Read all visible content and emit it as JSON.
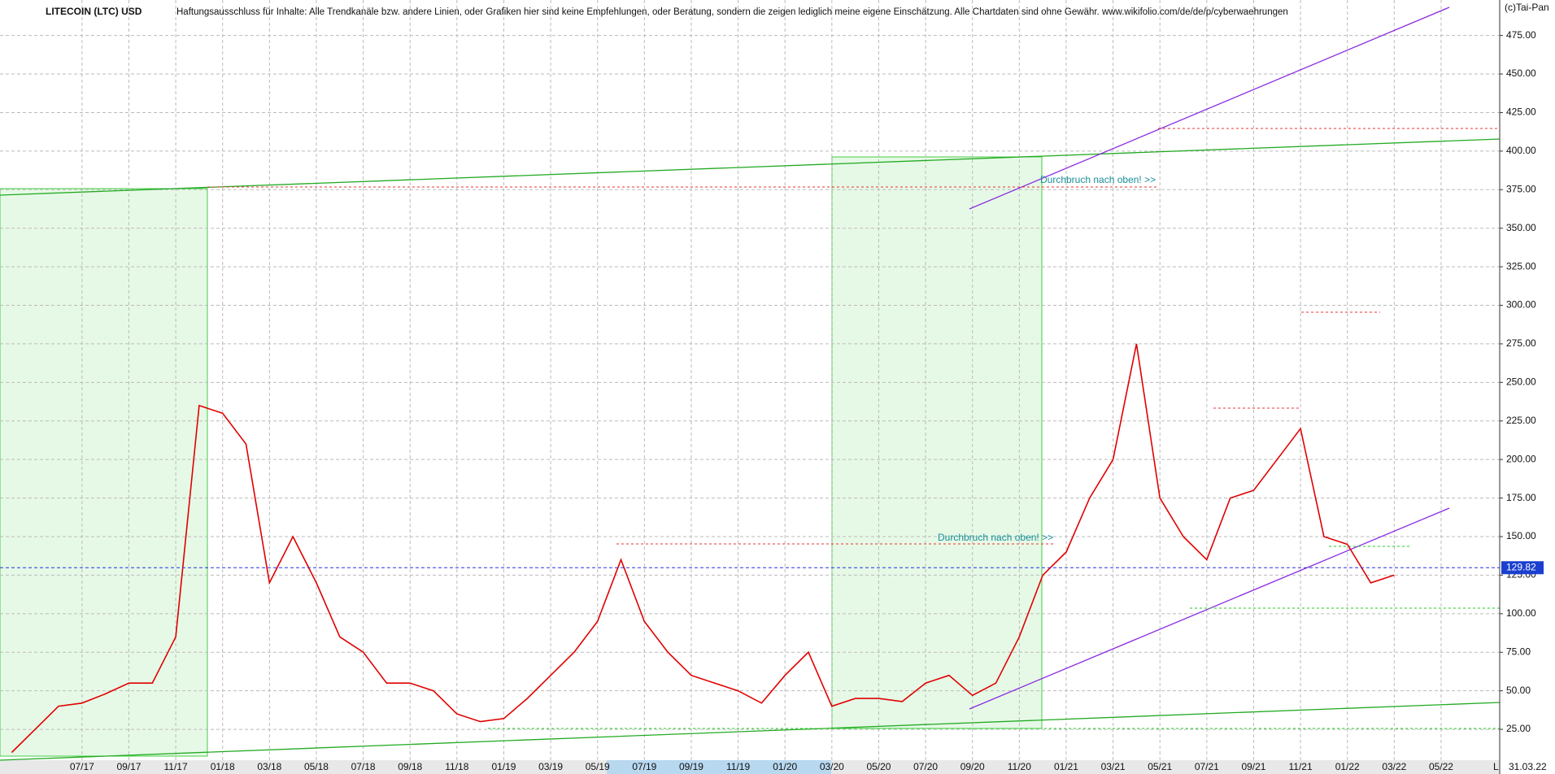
{
  "chart_data": {
    "type": "line",
    "title": "LITECOIN (LTC) USD",
    "disclaimer": "Haftungsausschluss für Inhalte: Alle Trendkanäle bzw. andere Linien, oder Grafiken hier sind keine Empfehlungen, oder Beratung, sondern die zeigen lediglich meine eigene Einschätzung. Alle Chartdaten sind ohne Gewähr.  www.wikifolio.com/de/de/p/cyberwaehrungen",
    "copyright": "(c)Tai-Pan",
    "annotations": [
      "Durchbruch nach oben! >>",
      "Durchbruch nach oben! >>"
    ],
    "date_label": "31.03.22",
    "x_axis_marker": "L",
    "last_value": 129.82,
    "categories": [
      null,
      null,
      null,
      "07/17",
      null,
      "09/17",
      null,
      "11/17",
      null,
      "01/18",
      null,
      "03/18",
      null,
      "05/18",
      null,
      "07/18",
      null,
      "09/18",
      null,
      "11/18",
      null,
      "01/19",
      null,
      "03/19",
      null,
      "05/19",
      null,
      "07/19",
      null,
      "09/19",
      null,
      "11/19",
      null,
      "01/20",
      null,
      "03/20",
      null,
      "05/20",
      null,
      "07/20",
      null,
      "09/20",
      null,
      "11/20",
      null,
      "01/21",
      null,
      "03/21",
      null,
      "05/21",
      null,
      "07/21",
      null,
      "09/21",
      null,
      "11/21",
      null,
      "01/22",
      null,
      "03/22",
      null,
      "05/22",
      null,
      null
    ],
    "series": [
      {
        "name": "LTC",
        "color": "#e00000",
        "values": [
          10,
          25,
          40,
          42,
          48,
          55,
          55,
          85,
          235,
          230,
          210,
          120,
          150,
          120,
          85,
          75,
          55,
          55,
          50,
          35,
          30,
          32,
          45,
          60,
          75,
          95,
          135,
          95,
          75,
          60,
          55,
          50,
          42,
          60,
          75,
          40,
          45,
          45,
          43,
          55,
          60,
          47,
          55,
          85,
          125,
          140,
          175,
          200,
          275,
          175,
          150,
          135,
          175,
          180,
          200,
          220,
          150,
          145,
          120,
          125,
          null,
          null,
          null,
          null
        ]
      }
    ],
    "ylim": [
      5,
      498
    ],
    "yticks": [
      {
        "value": 25,
        "label": "25.00"
      },
      {
        "value": 50,
        "label": "50.00"
      },
      {
        "value": 75,
        "label": "75.00"
      },
      {
        "value": 100,
        "label": "100.00"
      },
      {
        "value": 125,
        "label": "125.00"
      },
      {
        "value": 150,
        "label": "150.00"
      },
      {
        "value": 175,
        "label": "175.00"
      },
      {
        "value": 200,
        "label": "200.00"
      },
      {
        "value": 225,
        "label": "225.00"
      },
      {
        "value": 250,
        "label": "250.00"
      },
      {
        "value": 275,
        "label": "275.00"
      },
      {
        "value": 300,
        "label": "300.00"
      },
      {
        "value": 325,
        "label": "325.00"
      },
      {
        "value": 350,
        "label": "350.00"
      },
      {
        "value": 375,
        "label": "375.00"
      },
      {
        "value": 400,
        "label": "400.00"
      },
      {
        "value": 425,
        "label": "425.00"
      },
      {
        "value": 450,
        "label": "450.00"
      },
      {
        "value": 475,
        "label": "475.00"
      }
    ],
    "grid": true
  }
}
